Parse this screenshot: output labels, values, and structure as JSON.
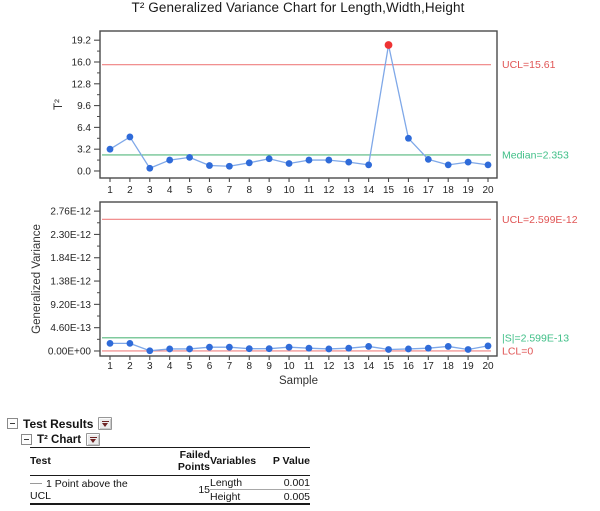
{
  "title": "T² Generalized Variance Chart for Length,Width,Height",
  "colors": {
    "point": "#2f6bd9",
    "series_line": "#7fa8e8",
    "out_of_control": "#ee3333",
    "limit_line": "#ef8080",
    "limit_text": "#e05555",
    "center_line": "#55b87d",
    "center_text": "#3fbf87",
    "frame": "#4a4a4a",
    "tick_text": "#262626",
    "axis_title_text": "#333333"
  },
  "chart_data": [
    {
      "type": "line",
      "name": "t2",
      "ylabel": "T²",
      "x": [
        1,
        2,
        3,
        4,
        5,
        6,
        7,
        8,
        9,
        10,
        11,
        12,
        13,
        14,
        15,
        16,
        17,
        18,
        19,
        20
      ],
      "values": [
        3.2,
        5.0,
        0.4,
        1.6,
        2.0,
        0.8,
        0.7,
        1.2,
        1.8,
        1.1,
        1.6,
        1.6,
        1.3,
        0.9,
        18.5,
        4.8,
        1.7,
        0.9,
        1.3,
        0.9
      ],
      "out_of_control_x": [
        15
      ],
      "ucl": 15.61,
      "ucl_label": "UCL=15.61",
      "center": 2.353,
      "center_label": "Median=2.353",
      "yticks": [
        0,
        3.2,
        6.4,
        9.6,
        12.8,
        16.0,
        19.2
      ],
      "ytick_labels": [
        "0.0",
        "3.2",
        "6.4",
        "9.6",
        "12.8",
        "16.0",
        "19.2"
      ],
      "ylim": [
        -1.03,
        20.55
      ],
      "grid": false,
      "xlabel": ""
    },
    {
      "type": "line",
      "name": "gv",
      "ylabel": "Generalized Variance",
      "xlabel": "Sample",
      "x": [
        1,
        2,
        3,
        4,
        5,
        6,
        7,
        8,
        9,
        10,
        11,
        12,
        13,
        14,
        15,
        16,
        17,
        18,
        19,
        20
      ],
      "values": [
        1.5e-13,
        1.5e-13,
        5e-15,
        4e-14,
        4e-14,
        7.5e-14,
        7.5e-14,
        4.5e-14,
        4.5e-14,
        7.5e-14,
        5.5e-14,
        4e-14,
        5.5e-14,
        9e-14,
        3e-14,
        4e-14,
        5.5e-14,
        9e-14,
        3e-14,
        1e-13
      ],
      "out_of_control_x": [],
      "ucl": 2.599e-12,
      "ucl_label": "UCL=2.599E-12",
      "center": 2.599e-13,
      "center_label": "|S|=2.599E-13",
      "lcl": 0,
      "lcl_label": "LCL=0",
      "yticks": [
        0,
        4.6e-13,
        9.2e-13,
        1.38e-12,
        1.84e-12,
        2.3e-12,
        2.76e-12
      ],
      "ytick_labels": [
        "0.00E+00",
        "4.60E-13",
        "9.20E-13",
        "1.38E-12",
        "1.84E-12",
        "2.30E-12",
        "2.76E-12"
      ],
      "ylim": [
        -9.9e-14,
        2.94e-12
      ],
      "grid": false
    }
  ],
  "test_results": {
    "section_label": "Test Results",
    "subsection_label": "T² Chart",
    "columns": {
      "test": "Test",
      "failed_points": "Failed Points",
      "variables": "Variables",
      "p_value": "P Value"
    },
    "rows": [
      {
        "test": "1 Point above the UCL",
        "failed_points": "15",
        "variables": [
          {
            "name": "Length",
            "p_value": "0.001"
          },
          {
            "name": "Height",
            "p_value": "0.005"
          }
        ]
      }
    ]
  }
}
